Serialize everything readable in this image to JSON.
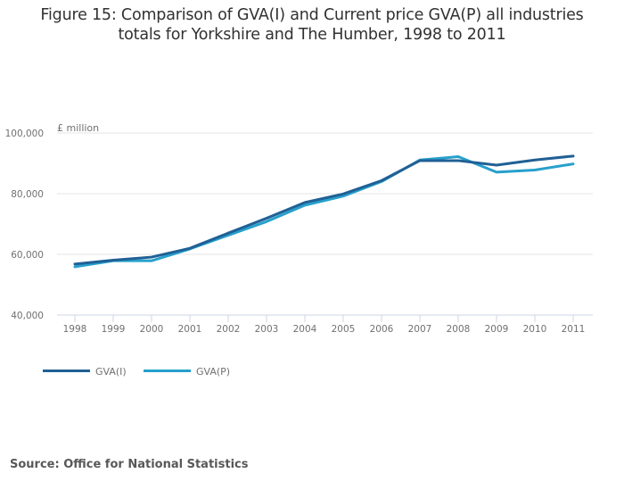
{
  "chart_data": {
    "type": "line",
    "title": "Figure 15: Comparison of GVA(I) and Current price GVA(P) all industries totals for Yorkshire and The Humber, 1998 to 2011",
    "title_lines": [
      "Figure 15: Comparison of GVA(I) and Current price GVA(P) all industries",
      "totals for Yorkshire and The Humber, 1998 to 2011"
    ],
    "xlabel": "",
    "ylabel": "£ million",
    "x": [
      "1998",
      "1999",
      "2000",
      "2001",
      "2002",
      "2003",
      "2004",
      "2005",
      "2006",
      "2007",
      "2008",
      "2009",
      "2010",
      "2011"
    ],
    "ylim": [
      40000,
      100000
    ],
    "yticks": [
      40000,
      60000,
      80000,
      100000
    ],
    "ytick_labels": [
      "40,000",
      "60,000",
      "80,000",
      "100,000"
    ],
    "grid": true,
    "legend_position": "bottom-left",
    "series": [
      {
        "name": "GVA(I)",
        "color": "#206095",
        "values": [
          56800,
          58100,
          59100,
          62000,
          67000,
          71900,
          77100,
          79900,
          84300,
          90900,
          90900,
          89400,
          91100,
          92400
        ]
      },
      {
        "name": "GVA(P)",
        "color": "#27a0cc",
        "values": [
          55900,
          57900,
          57900,
          61800,
          66300,
          70800,
          76200,
          79200,
          84000,
          91100,
          92200,
          87100,
          87800,
          89800
        ]
      }
    ]
  },
  "source": "Source: Office for National Statistics"
}
